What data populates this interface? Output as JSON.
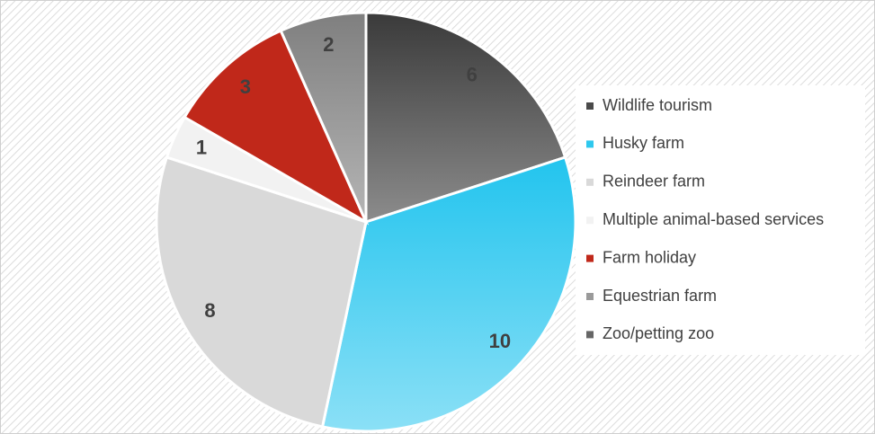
{
  "chart_data": {
    "type": "pie",
    "categories": [
      "Wildlife tourism",
      "Husky farm",
      "Reindeer farm",
      "Multiple animal-based services",
      "Farm holiday",
      "Equestrian farm",
      "Zoo/petting zoo"
    ],
    "values": [
      6,
      10,
      8,
      1,
      3,
      2,
      0
    ],
    "colors": [
      "#4a4a4a",
      "#2ec8ee",
      "#d9d9d9",
      "#f2f2f2",
      "#c0281a",
      "#9a9a9a",
      "#666666"
    ],
    "legend": "right"
  }
}
